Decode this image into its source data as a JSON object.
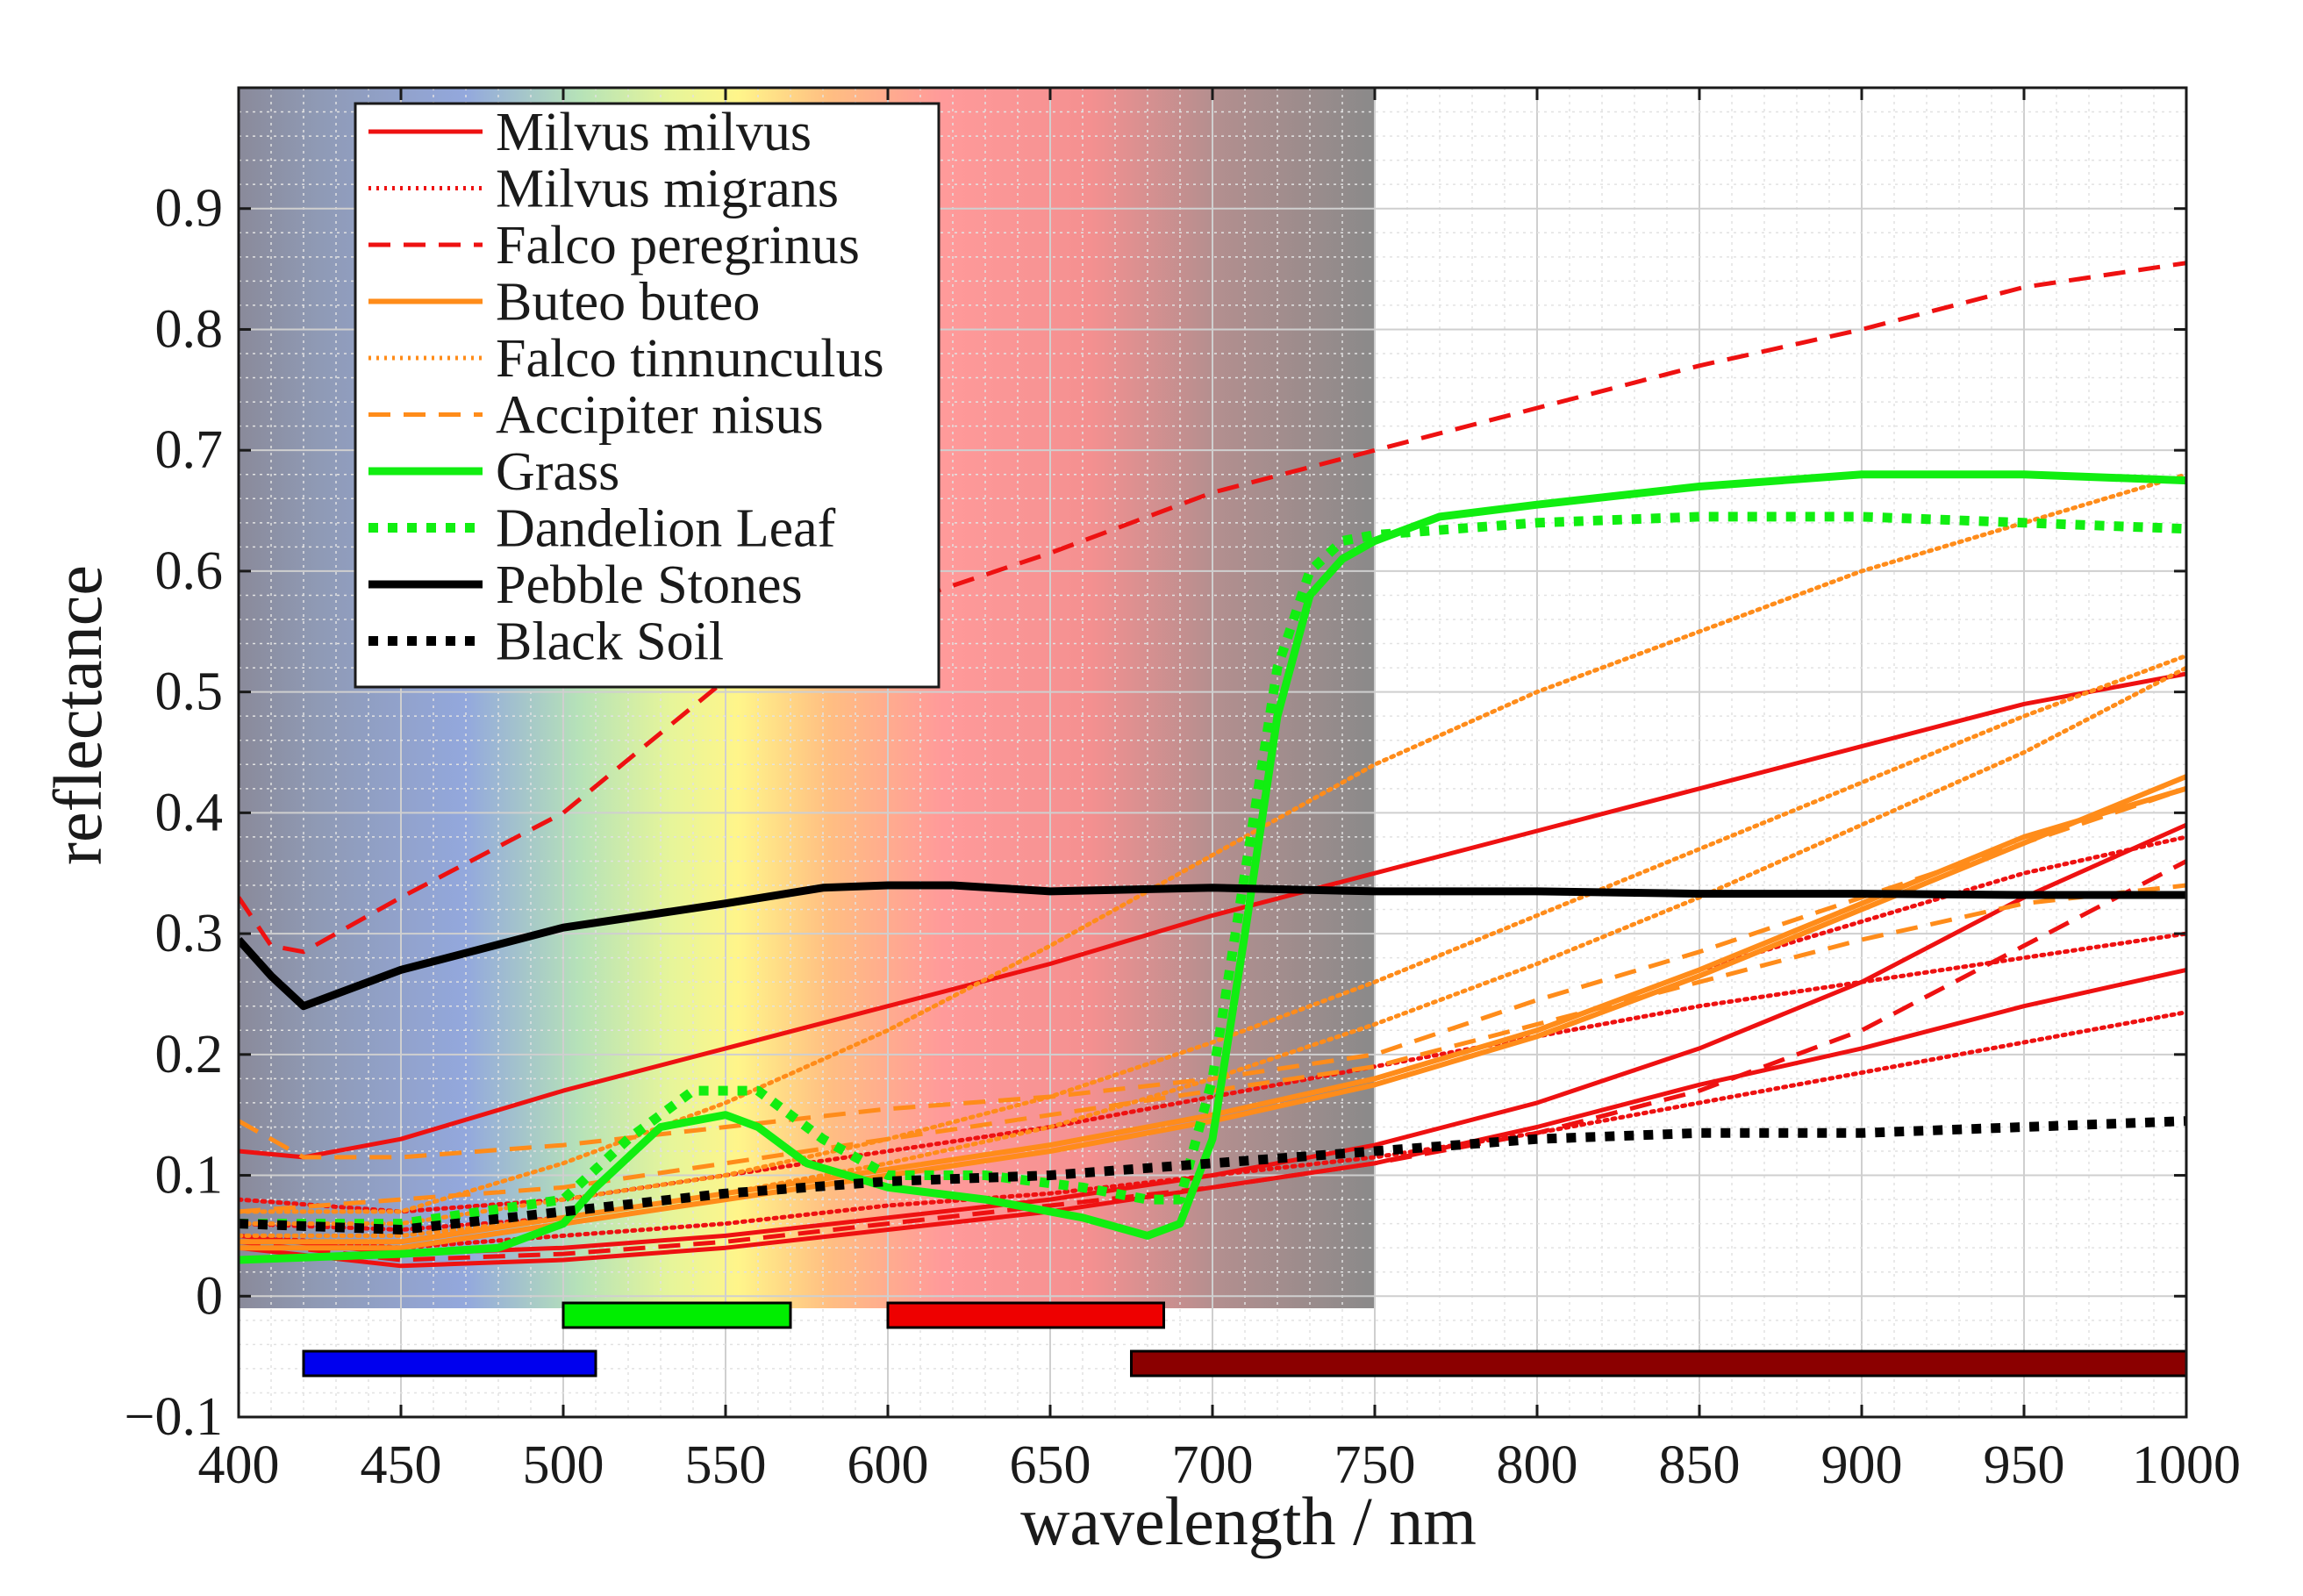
{
  "chart_data": {
    "type": "line",
    "title": "",
    "xlabel": "wavelength / nm",
    "ylabel": "reflectance",
    "xlim": [
      400,
      1000
    ],
    "ylim": [
      -0.1,
      1.0
    ],
    "xticks": [
      "400",
      "450",
      "500",
      "550",
      "600",
      "650",
      "700",
      "750",
      "800",
      "850",
      "900",
      "950",
      "1000"
    ],
    "yticks": [
      "−0.1",
      "0",
      "0.1",
      "0.2",
      "0.3",
      "0.4",
      "0.5",
      "0.6",
      "0.7",
      "0.8",
      "0.9"
    ],
    "grid": true,
    "legend_position": "top-left",
    "visible_spectrum_shading": {
      "from": 400,
      "to": 750
    },
    "bands": [
      {
        "name": "blue band",
        "from": 420,
        "to": 510,
        "level": "lower",
        "color": "#0000ee"
      },
      {
        "name": "green band",
        "from": 500,
        "to": 570,
        "level": "upper",
        "color": "#00ee00"
      },
      {
        "name": "red band",
        "from": 600,
        "to": 685,
        "level": "upper",
        "color": "#ee0000"
      },
      {
        "name": "nir band",
        "from": 675,
        "to": 1000,
        "level": "lower",
        "color": "#8b0000"
      }
    ],
    "series": [
      {
        "name": "Milvus milvus",
        "color": "#ee1111",
        "style": "solid",
        "width": 5,
        "legend": true,
        "x": [
          400,
          420,
          450,
          500,
          550,
          600,
          650,
          700,
          750,
          800,
          850,
          900,
          950,
          1000
        ],
        "y": [
          0.12,
          0.115,
          0.13,
          0.17,
          0.205,
          0.24,
          0.275,
          0.315,
          0.35,
          0.385,
          0.42,
          0.455,
          0.49,
          0.515
        ]
      },
      {
        "name": "Milvus milvus 2",
        "color": "#ee1111",
        "style": "solid",
        "width": 5,
        "legend": false,
        "x": [
          400,
          450,
          500,
          550,
          600,
          650,
          700,
          750,
          800,
          850,
          900,
          950,
          1000
        ],
        "y": [
          0.05,
          0.035,
          0.04,
          0.05,
          0.065,
          0.08,
          0.1,
          0.125,
          0.16,
          0.205,
          0.26,
          0.33,
          0.39
        ]
      },
      {
        "name": "Milvus milvus 3",
        "color": "#ee1111",
        "style": "solid",
        "width": 5,
        "legend": false,
        "x": [
          400,
          450,
          500,
          550,
          600,
          650,
          700,
          750,
          800,
          850,
          900,
          950,
          1000
        ],
        "y": [
          0.04,
          0.025,
          0.03,
          0.04,
          0.055,
          0.07,
          0.09,
          0.11,
          0.14,
          0.175,
          0.205,
          0.24,
          0.27
        ]
      },
      {
        "name": "Milvus migrans",
        "color": "#ee1111",
        "style": "dotted",
        "width": 5,
        "legend": true,
        "x": [
          400,
          450,
          500,
          550,
          600,
          650,
          700,
          750,
          800,
          850,
          900,
          950,
          1000
        ],
        "y": [
          0.08,
          0.07,
          0.08,
          0.1,
          0.12,
          0.14,
          0.165,
          0.19,
          0.215,
          0.24,
          0.26,
          0.28,
          0.3
        ]
      },
      {
        "name": "Milvus migrans 2",
        "color": "#ee1111",
        "style": "dotted",
        "width": 5,
        "legend": false,
        "x": [
          400,
          450,
          500,
          550,
          600,
          650,
          700,
          750,
          800,
          850,
          900,
          950,
          1000
        ],
        "y": [
          0.06,
          0.055,
          0.065,
          0.085,
          0.105,
          0.125,
          0.15,
          0.18,
          0.22,
          0.27,
          0.31,
          0.35,
          0.38
        ]
      },
      {
        "name": "Milvus migrans 3",
        "color": "#ee1111",
        "style": "dotted",
        "width": 5,
        "legend": false,
        "x": [
          400,
          450,
          500,
          550,
          600,
          650,
          700,
          750,
          800,
          850,
          900,
          950,
          1000
        ],
        "y": [
          0.05,
          0.04,
          0.05,
          0.06,
          0.075,
          0.085,
          0.1,
          0.115,
          0.135,
          0.16,
          0.185,
          0.21,
          0.235
        ]
      },
      {
        "name": "Falco peregrinus",
        "color": "#ee1111",
        "style": "dashed",
        "width": 5,
        "legend": true,
        "x": [
          400,
          410,
          420,
          450,
          500,
          550,
          600,
          650,
          700,
          750,
          800,
          850,
          900,
          950,
          1000
        ],
        "y": [
          0.33,
          0.29,
          0.285,
          0.33,
          0.4,
          0.51,
          0.57,
          0.615,
          0.665,
          0.7,
          0.735,
          0.77,
          0.8,
          0.835,
          0.855
        ]
      },
      {
        "name": "Falco peregrinus 2",
        "color": "#ee1111",
        "style": "dashed",
        "width": 5,
        "legend": false,
        "x": [
          400,
          450,
          500,
          550,
          600,
          650,
          700,
          750,
          800,
          850,
          900,
          950,
          1000
        ],
        "y": [
          0.045,
          0.03,
          0.035,
          0.045,
          0.06,
          0.075,
          0.09,
          0.11,
          0.135,
          0.17,
          0.22,
          0.29,
          0.36
        ]
      },
      {
        "name": "Buteo buteo",
        "color": "#ff8c1a",
        "style": "solid",
        "width": 6,
        "legend": true,
        "x": [
          400,
          450,
          500,
          550,
          600,
          650,
          700,
          750,
          800,
          850,
          900,
          950,
          1000
        ],
        "y": [
          0.04,
          0.04,
          0.06,
          0.08,
          0.1,
          0.12,
          0.145,
          0.175,
          0.215,
          0.265,
          0.32,
          0.375,
          0.43
        ]
      },
      {
        "name": "Buteo buteo 2",
        "color": "#ff8c1a",
        "style": "solid",
        "width": 6,
        "legend": false,
        "x": [
          400,
          450,
          500,
          550,
          600,
          650,
          700,
          750,
          800,
          850,
          900,
          950,
          1000
        ],
        "y": [
          0.045,
          0.045,
          0.065,
          0.085,
          0.105,
          0.125,
          0.15,
          0.18,
          0.22,
          0.27,
          0.325,
          0.38,
          0.42
        ]
      },
      {
        "name": "Falco tinnunculus",
        "color": "#ff8c1a",
        "style": "dotted",
        "width": 5,
        "legend": true,
        "x": [
          400,
          450,
          500,
          550,
          600,
          650,
          700,
          750,
          800,
          850,
          900,
          950,
          1000
        ],
        "y": [
          0.07,
          0.07,
          0.11,
          0.16,
          0.22,
          0.29,
          0.365,
          0.44,
          0.5,
          0.55,
          0.6,
          0.64,
          0.68
        ]
      },
      {
        "name": "Falco tinnunculus 2",
        "color": "#ff8c1a",
        "style": "dotted",
        "width": 5,
        "legend": false,
        "x": [
          400,
          450,
          500,
          550,
          600,
          650,
          700,
          750,
          800,
          850,
          900,
          950,
          1000
        ],
        "y": [
          0.06,
          0.06,
          0.08,
          0.1,
          0.13,
          0.165,
          0.21,
          0.26,
          0.315,
          0.37,
          0.425,
          0.48,
          0.53
        ]
      },
      {
        "name": "Falco tinnunculus 3",
        "color": "#ff8c1a",
        "style": "dotted",
        "width": 5,
        "legend": false,
        "x": [
          400,
          450,
          500,
          550,
          600,
          650,
          700,
          750,
          800,
          850,
          900,
          950,
          1000
        ],
        "y": [
          0.05,
          0.05,
          0.065,
          0.085,
          0.11,
          0.14,
          0.18,
          0.225,
          0.275,
          0.33,
          0.39,
          0.45,
          0.52
        ]
      },
      {
        "name": "Accipiter nisus",
        "color": "#ff8c1a",
        "style": "dashed",
        "width": 5,
        "legend": true,
        "x": [
          400,
          420,
          450,
          500,
          550,
          600,
          650,
          700,
          750,
          800,
          850,
          900,
          950,
          1000
        ],
        "y": [
          0.145,
          0.115,
          0.115,
          0.125,
          0.14,
          0.155,
          0.165,
          0.18,
          0.2,
          0.245,
          0.285,
          0.33,
          0.375,
          0.42
        ]
      },
      {
        "name": "Accipiter nisus 2",
        "color": "#ff8c1a",
        "style": "dashed",
        "width": 5,
        "legend": false,
        "x": [
          400,
          450,
          500,
          550,
          600,
          650,
          700,
          750,
          800,
          850,
          900,
          950,
          1000
        ],
        "y": [
          0.07,
          0.08,
          0.09,
          0.11,
          0.13,
          0.15,
          0.17,
          0.19,
          0.225,
          0.26,
          0.295,
          0.325,
          0.34
        ]
      },
      {
        "name": "Grass",
        "color": "#11ee11",
        "style": "solid",
        "width": 9,
        "legend": true,
        "x": [
          400,
          450,
          480,
          500,
          510,
          530,
          550,
          560,
          575,
          600,
          630,
          660,
          680,
          690,
          700,
          710,
          720,
          730,
          740,
          750,
          770,
          800,
          850,
          900,
          950,
          1000
        ],
        "y": [
          0.03,
          0.035,
          0.04,
          0.06,
          0.09,
          0.14,
          0.15,
          0.14,
          0.11,
          0.09,
          0.08,
          0.065,
          0.05,
          0.06,
          0.13,
          0.3,
          0.48,
          0.58,
          0.61,
          0.625,
          0.645,
          0.655,
          0.67,
          0.68,
          0.68,
          0.675
        ]
      },
      {
        "name": "Dandelion Leaf",
        "color": "#11ee11",
        "style": "dotted-thick",
        "width": 11,
        "legend": true,
        "x": [
          400,
          450,
          500,
          520,
          540,
          560,
          580,
          600,
          630,
          660,
          680,
          690,
          700,
          710,
          720,
          730,
          740,
          750,
          800,
          850,
          900,
          950,
          1000
        ],
        "y": [
          0.06,
          0.06,
          0.08,
          0.13,
          0.17,
          0.17,
          0.13,
          0.1,
          0.1,
          0.09,
          0.08,
          0.08,
          0.18,
          0.35,
          0.52,
          0.6,
          0.625,
          0.63,
          0.64,
          0.645,
          0.645,
          0.64,
          0.635
        ]
      },
      {
        "name": "Pebble Stones",
        "color": "#000000",
        "style": "solid",
        "width": 9,
        "legend": true,
        "x": [
          400,
          410,
          420,
          450,
          500,
          550,
          580,
          600,
          620,
          650,
          700,
          750,
          800,
          850,
          900,
          950,
          1000
        ],
        "y": [
          0.295,
          0.265,
          0.24,
          0.27,
          0.305,
          0.325,
          0.338,
          0.34,
          0.34,
          0.335,
          0.338,
          0.335,
          0.335,
          0.333,
          0.333,
          0.332,
          0.332
        ]
      },
      {
        "name": "Black Soil",
        "color": "#000000",
        "style": "dotted-thick",
        "width": 11,
        "legend": true,
        "x": [
          400,
          450,
          500,
          550,
          600,
          650,
          700,
          750,
          800,
          850,
          900,
          950,
          1000
        ],
        "y": [
          0.06,
          0.055,
          0.07,
          0.085,
          0.095,
          0.1,
          0.11,
          0.12,
          0.13,
          0.135,
          0.135,
          0.14,
          0.145
        ]
      }
    ]
  }
}
